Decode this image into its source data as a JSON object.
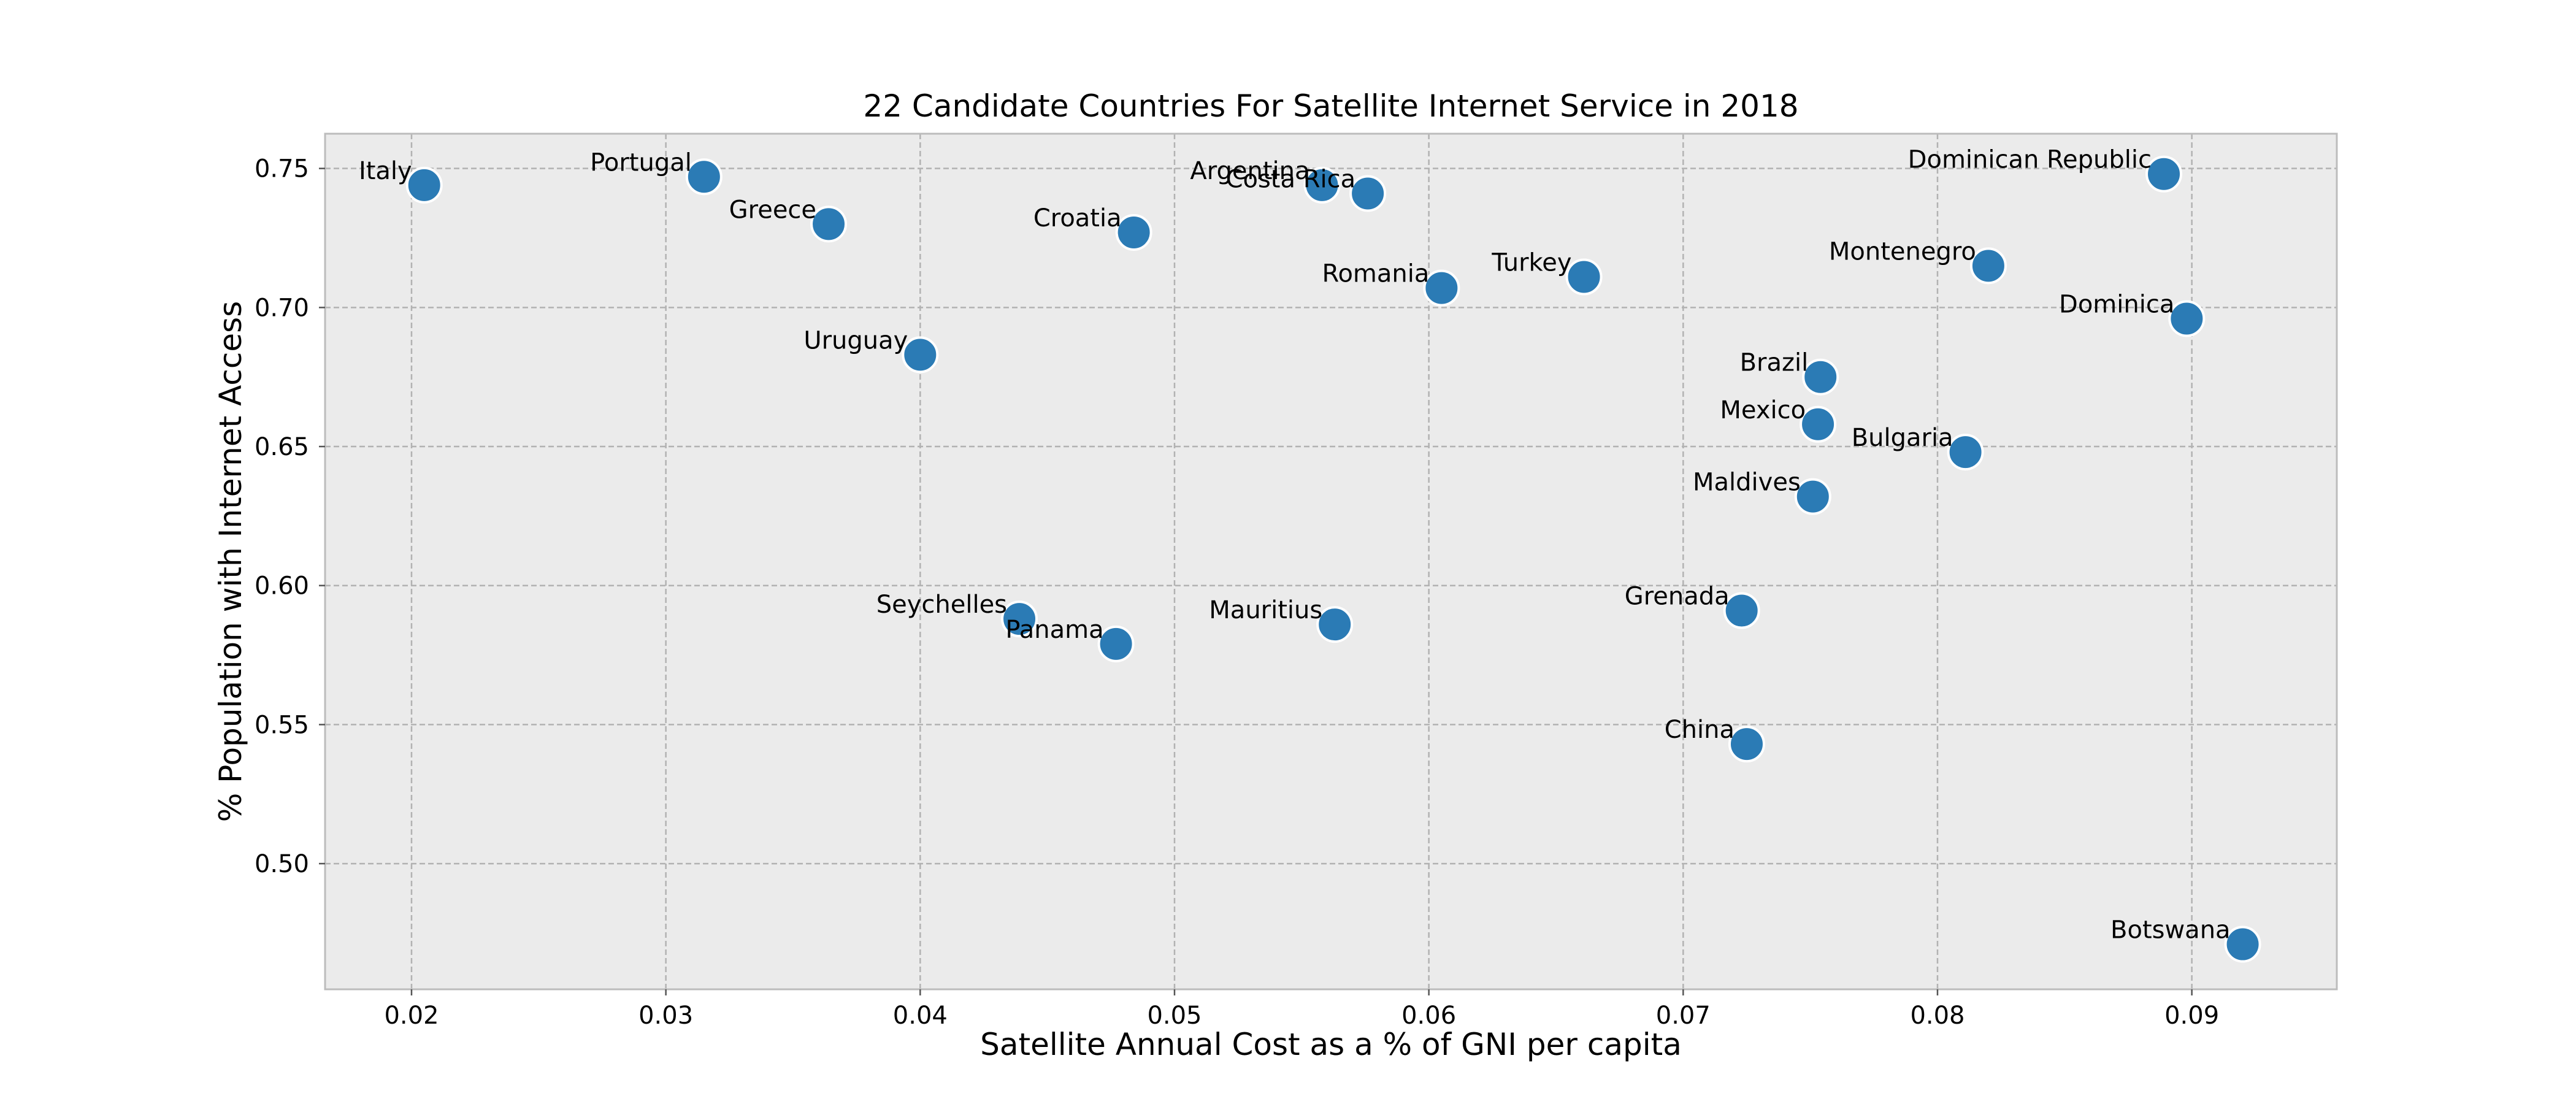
{
  "chart_data": {
    "type": "scatter",
    "title": "22 Candidate Countries For Satellite Internet Service in 2018",
    "xlabel": "Satellite Annual Cost as a % of GNI per capita",
    "ylabel": "% Population with Internet Access",
    "xlim": [
      0.0166,
      0.0957
    ],
    "ylim": [
      0.4548,
      0.7625
    ],
    "xticks": [
      "0.02",
      "0.03",
      "0.04",
      "0.05",
      "0.06",
      "0.07",
      "0.08",
      "0.09"
    ],
    "yticks": [
      "0.50",
      "0.55",
      "0.60",
      "0.65",
      "0.70",
      "0.75"
    ],
    "grid": true,
    "background": "#ebebeb",
    "marker_color": "#2b7bb5",
    "points": [
      {
        "label": "Italy",
        "x": 0.0205,
        "y": 0.744
      },
      {
        "label": "Portugal",
        "x": 0.0315,
        "y": 0.747
      },
      {
        "label": "Greece",
        "x": 0.0364,
        "y": 0.73
      },
      {
        "label": "Croatia",
        "x": 0.0484,
        "y": 0.727
      },
      {
        "label": "Argentina",
        "x": 0.0558,
        "y": 0.744
      },
      {
        "label": "Costa Rica",
        "x": 0.0576,
        "y": 0.741
      },
      {
        "label": "Romania",
        "x": 0.0605,
        "y": 0.707
      },
      {
        "label": "Turkey",
        "x": 0.0661,
        "y": 0.711
      },
      {
        "label": "Dominican Republic",
        "x": 0.0889,
        "y": 0.748
      },
      {
        "label": "Montenegro",
        "x": 0.082,
        "y": 0.715
      },
      {
        "label": "Dominica",
        "x": 0.0898,
        "y": 0.696
      },
      {
        "label": "Uruguay",
        "x": 0.04,
        "y": 0.683
      },
      {
        "label": "Brazil",
        "x": 0.0754,
        "y": 0.675
      },
      {
        "label": "Mexico",
        "x": 0.0753,
        "y": 0.658
      },
      {
        "label": "Bulgaria",
        "x": 0.0811,
        "y": 0.648
      },
      {
        "label": "Maldives",
        "x": 0.0751,
        "y": 0.632
      },
      {
        "label": "Seychelles",
        "x": 0.0439,
        "y": 0.588
      },
      {
        "label": "Panama",
        "x": 0.0477,
        "y": 0.579
      },
      {
        "label": "Mauritius",
        "x": 0.0563,
        "y": 0.586
      },
      {
        "label": "Grenada",
        "x": 0.0723,
        "y": 0.591
      },
      {
        "label": "China",
        "x": 0.0725,
        "y": 0.543
      },
      {
        "label": "Botswana",
        "x": 0.092,
        "y": 0.471
      }
    ]
  }
}
